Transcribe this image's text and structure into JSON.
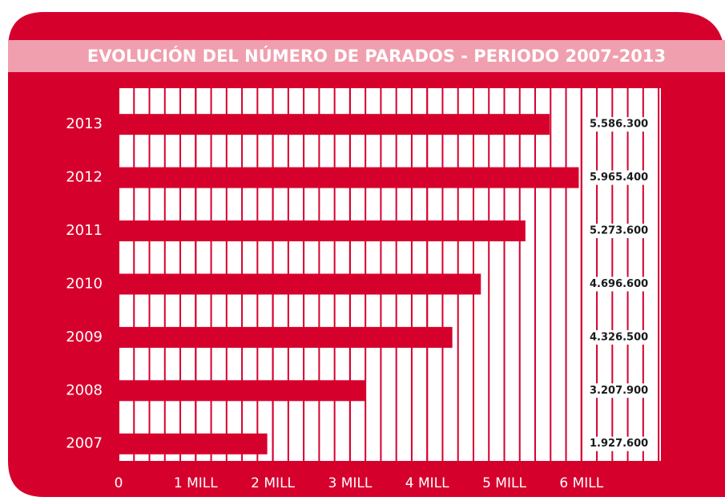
{
  "chart_data": {
    "type": "hbar",
    "title": "EVOLUCIÓN DEL NÚMERO DE PARADOS  - PERIODO 2007-2013",
    "categories": [
      "2013",
      "2012",
      "2011",
      "2010",
      "2009",
      "2008",
      "2007"
    ],
    "values": [
      5586300,
      5965400,
      5273600,
      4696600,
      4326500,
      3207900,
      1927600
    ],
    "value_labels": [
      "5.586.300",
      "5.965.400",
      "5.273.600",
      "4.696.600",
      "4.326.500",
      "3.207.900",
      "1.927.600"
    ],
    "color": "#d6002d",
    "xlim": [
      0,
      7030000
    ],
    "xticks": [
      0,
      {
        "value": 1000000,
        "label": "1 MILL"
      },
      {
        "value": 2000000,
        "label": "2 MILL"
      },
      {
        "value": 3000000,
        "label": "3 MILL"
      },
      {
        "value": 4000000,
        "label": "4 MILL"
      },
      {
        "value": 5000000,
        "label": "5 MILL"
      },
      {
        "value": 6000000,
        "label": "6 MILL"
      }
    ],
    "grid": true,
    "minor_grid_step": 200000
  }
}
